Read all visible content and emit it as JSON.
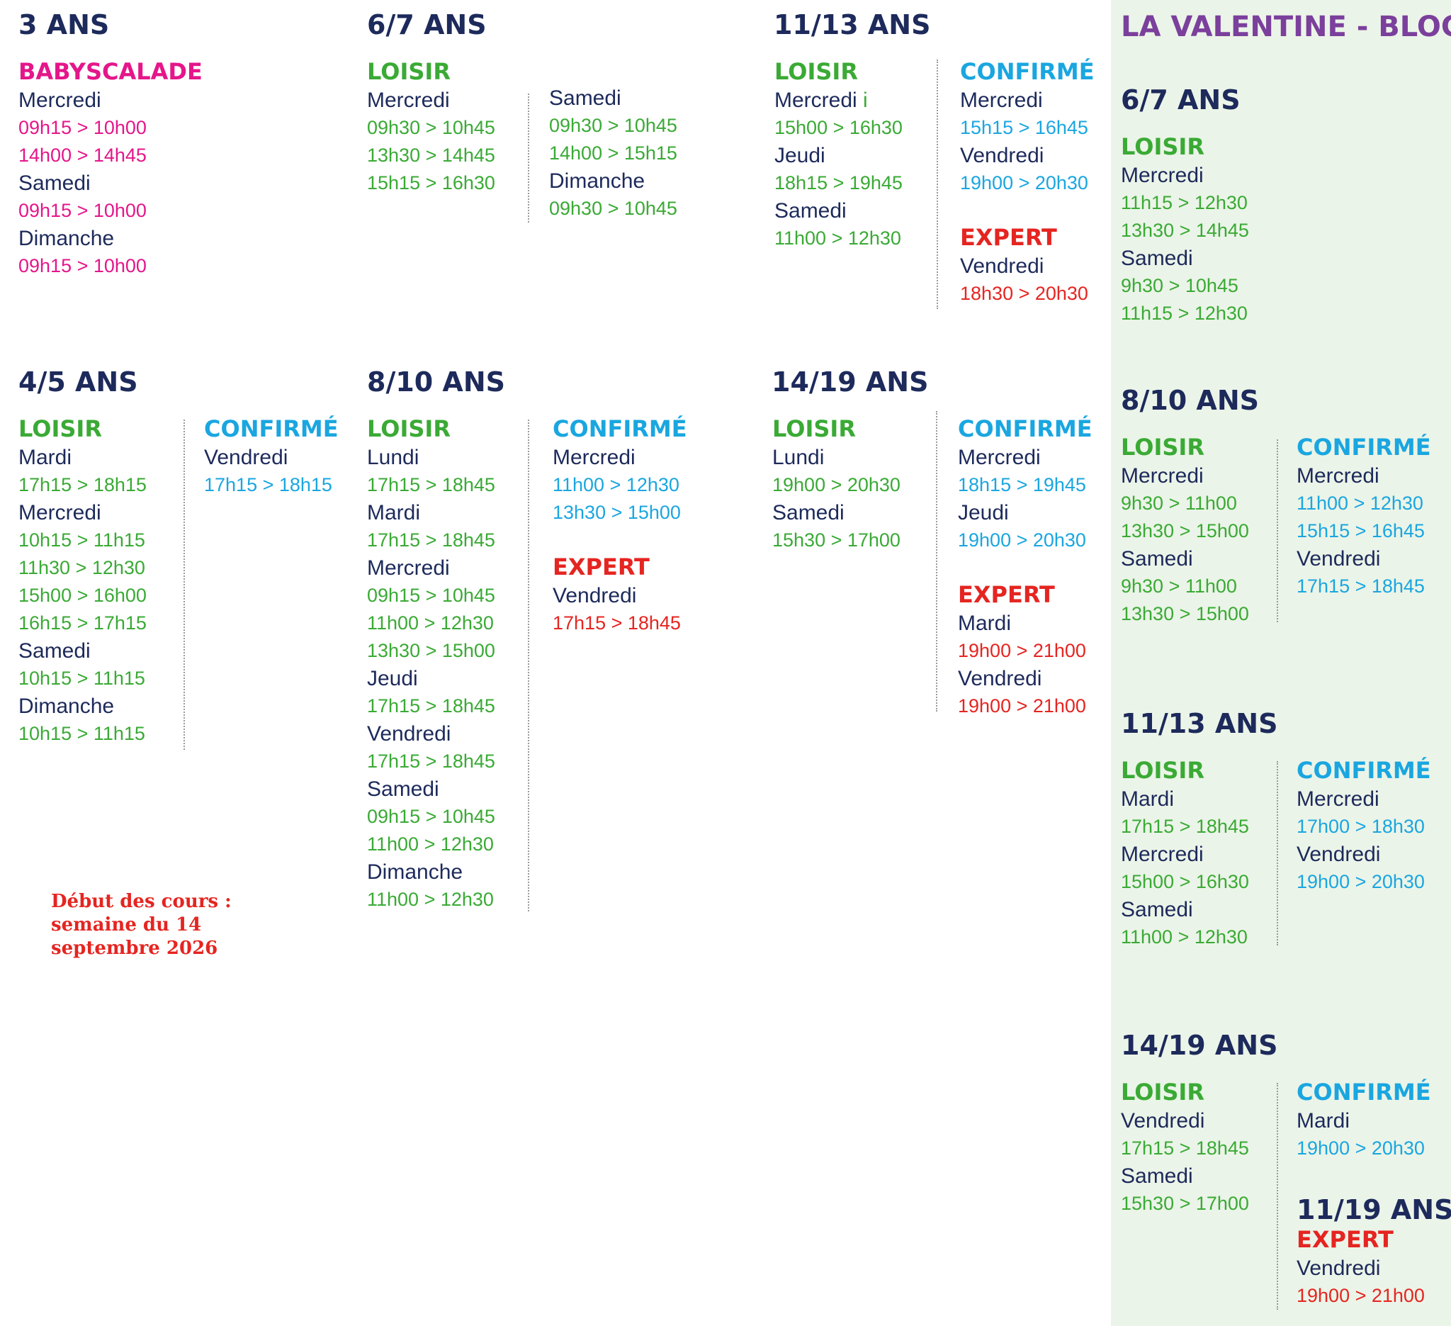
{
  "sections": {
    "a3": {
      "title": "3 ANS",
      "col1": [
        {
          "t": "cat",
          "c": "baby",
          "v": "BABYSCALADE"
        },
        {
          "t": "day",
          "v": "Mercredi"
        },
        {
          "t": "time",
          "c": "baby",
          "v": "09h15 > 10h00"
        },
        {
          "t": "time",
          "c": "baby",
          "v": "14h00 > 14h45"
        },
        {
          "t": "day",
          "v": "Samedi"
        },
        {
          "t": "time",
          "c": "baby",
          "v": "09h15 > 10h00"
        },
        {
          "t": "day",
          "v": "Dimanche"
        },
        {
          "t": "time",
          "c": "baby",
          "v": "09h15 > 10h00"
        }
      ]
    },
    "a67": {
      "title": "6/7 ANS",
      "col1": [
        {
          "t": "cat",
          "c": "loisir",
          "v": "LOISIR"
        },
        {
          "t": "day",
          "v": "Mercredi"
        },
        {
          "t": "time",
          "c": "loisir",
          "v": "09h30 > 10h45"
        },
        {
          "t": "time",
          "c": "loisir",
          "v": "13h30 > 14h45"
        },
        {
          "t": "time",
          "c": "loisir",
          "v": "15h15 > 16h30"
        }
      ],
      "col2": [
        {
          "t": "day",
          "v": "Samedi"
        },
        {
          "t": "time",
          "c": "loisir",
          "v": "09h30 > 10h45"
        },
        {
          "t": "time",
          "c": "loisir",
          "v": "14h00 > 15h15"
        },
        {
          "t": "day",
          "v": "Dimanche"
        },
        {
          "t": "time",
          "c": "loisir",
          "v": "09h30 > 10h45"
        }
      ]
    },
    "a1113": {
      "title": "11/13 ANS",
      "col1": [
        {
          "t": "cat",
          "c": "loisir",
          "v": "LOISIR"
        },
        {
          "t": "day",
          "v": "Mercredi",
          "extra": " i"
        },
        {
          "t": "time",
          "c": "loisir",
          "v": "15h00 > 16h30"
        },
        {
          "t": "day",
          "v": "Jeudi"
        },
        {
          "t": "time",
          "c": "loisir",
          "v": "18h15 > 19h45"
        },
        {
          "t": "day",
          "v": "Samedi"
        },
        {
          "t": "time",
          "c": "loisir",
          "v": "11h00 > 12h30"
        }
      ],
      "col2": [
        {
          "t": "cat",
          "c": "confirme",
          "v": "CONFIRMÉ"
        },
        {
          "t": "day",
          "v": "Mercredi"
        },
        {
          "t": "time",
          "c": "confirme",
          "v": "15h15 > 16h45"
        },
        {
          "t": "day",
          "v": "Vendredi"
        },
        {
          "t": "time",
          "c": "confirme",
          "v": "19h00 > 20h30"
        },
        {
          "t": "gap"
        },
        {
          "t": "cat",
          "c": "expert",
          "v": "EXPERT"
        },
        {
          "t": "day",
          "v": "Vendredi"
        },
        {
          "t": "time",
          "c": "expert",
          "v": "18h30 > 20h30"
        }
      ]
    },
    "a45": {
      "title": "4/5 ANS",
      "col1": [
        {
          "t": "cat",
          "c": "loisir",
          "v": "LOISIR"
        },
        {
          "t": "day",
          "v": "Mardi"
        },
        {
          "t": "time",
          "c": "loisir",
          "v": "17h15 > 18h15"
        },
        {
          "t": "day",
          "v": "Mercredi"
        },
        {
          "t": "time",
          "c": "loisir",
          "v": "10h15 > 11h15"
        },
        {
          "t": "time",
          "c": "loisir",
          "v": "11h30 > 12h30"
        },
        {
          "t": "time",
          "c": "loisir",
          "v": "15h00 > 16h00"
        },
        {
          "t": "time",
          "c": "loisir",
          "v": "16h15 > 17h15"
        },
        {
          "t": "day",
          "v": "Samedi"
        },
        {
          "t": "time",
          "c": "loisir",
          "v": "10h15 > 11h15"
        },
        {
          "t": "day",
          "v": "Dimanche"
        },
        {
          "t": "time",
          "c": "loisir",
          "v": "10h15 > 11h15"
        }
      ],
      "col2": [
        {
          "t": "cat",
          "c": "confirme",
          "v": "CONFIRMÉ"
        },
        {
          "t": "day",
          "v": "Vendredi"
        },
        {
          "t": "time",
          "c": "confirme",
          "v": "17h15 > 18h15"
        }
      ]
    },
    "a810": {
      "title": "8/10 ANS",
      "col1": [
        {
          "t": "cat",
          "c": "loisir",
          "v": "LOISIR"
        },
        {
          "t": "day",
          "v": "Lundi"
        },
        {
          "t": "time",
          "c": "loisir",
          "v": "17h15 > 18h45"
        },
        {
          "t": "day",
          "v": "Mardi"
        },
        {
          "t": "time",
          "c": "loisir",
          "v": "17h15 > 18h45"
        },
        {
          "t": "day",
          "v": "Mercredi"
        },
        {
          "t": "time",
          "c": "loisir",
          "v": "09h15 > 10h45"
        },
        {
          "t": "time",
          "c": "loisir",
          "v": "11h00 > 12h30"
        },
        {
          "t": "time",
          "c": "loisir",
          "v": "13h30 > 15h00"
        },
        {
          "t": "day",
          "v": "Jeudi"
        },
        {
          "t": "time",
          "c": "loisir",
          "v": "17h15 > 18h45"
        },
        {
          "t": "day",
          "v": "Vendredi"
        },
        {
          "t": "time",
          "c": "loisir",
          "v": "17h15 > 18h45"
        },
        {
          "t": "day",
          "v": "Samedi"
        },
        {
          "t": "time",
          "c": "loisir",
          "v": "09h15 > 10h45"
        },
        {
          "t": "time",
          "c": "loisir",
          "v": "11h00 > 12h30"
        },
        {
          "t": "day",
          "v": "Dimanche"
        },
        {
          "t": "time",
          "c": "loisir",
          "v": "11h00 > 12h30"
        }
      ],
      "col2": [
        {
          "t": "cat",
          "c": "confirme",
          "v": "CONFIRMÉ"
        },
        {
          "t": "day",
          "v": "Mercredi"
        },
        {
          "t": "time",
          "c": "confirme",
          "v": "11h00 > 12h30"
        },
        {
          "t": "time",
          "c": "confirme",
          "v": "13h30 > 15h00"
        },
        {
          "t": "gap"
        },
        {
          "t": "cat",
          "c": "expert",
          "v": "EXPERT"
        },
        {
          "t": "day",
          "v": "Vendredi"
        },
        {
          "t": "time",
          "c": "expert",
          "v": "17h15 > 18h45"
        }
      ]
    },
    "a1419": {
      "title": "14/19 ANS",
      "col1": [
        {
          "t": "cat",
          "c": "loisir",
          "v": "LOISIR"
        },
        {
          "t": "day",
          "v": "Lundi"
        },
        {
          "t": "time",
          "c": "loisir",
          "v": "19h00 > 20h30"
        },
        {
          "t": "day",
          "v": "Samedi"
        },
        {
          "t": "time",
          "c": "loisir",
          "v": "15h30 > 17h00"
        }
      ],
      "col2": [
        {
          "t": "cat",
          "c": "confirme",
          "v": "CONFIRMÉ"
        },
        {
          "t": "day",
          "v": "Mercredi"
        },
        {
          "t": "time",
          "c": "confirme",
          "v": "18h15 > 19h45"
        },
        {
          "t": "day",
          "v": "Jeudi"
        },
        {
          "t": "time",
          "c": "confirme",
          "v": "19h00 > 20h30"
        },
        {
          "t": "gap"
        },
        {
          "t": "cat",
          "c": "expert",
          "v": "EXPERT"
        },
        {
          "t": "day",
          "v": "Mardi"
        },
        {
          "t": "time",
          "c": "expert",
          "v": "19h00 > 21h00"
        },
        {
          "t": "day",
          "v": "Vendredi"
        },
        {
          "t": "time",
          "c": "expert",
          "v": "19h00 > 21h00"
        }
      ]
    },
    "v_title": "LA VALENTINE - BLOC",
    "v67": {
      "title": "6/7 ANS",
      "col1": [
        {
          "t": "cat",
          "c": "loisir",
          "v": "LOISIR"
        },
        {
          "t": "day",
          "v": "Mercredi"
        },
        {
          "t": "time",
          "c": "loisir",
          "v": "11h15 > 12h30"
        },
        {
          "t": "time",
          "c": "loisir",
          "v": "13h30 > 14h45"
        },
        {
          "t": "day",
          "v": "Samedi"
        },
        {
          "t": "time",
          "c": "loisir",
          "v": "9h30 > 10h45"
        },
        {
          "t": "time",
          "c": "loisir",
          "v": "11h15 > 12h30"
        }
      ]
    },
    "v810": {
      "title": "8/10 ANS",
      "col1": [
        {
          "t": "cat",
          "c": "loisir",
          "v": "LOISIR"
        },
        {
          "t": "day",
          "v": "Mercredi"
        },
        {
          "t": "time",
          "c": "loisir",
          "v": "9h30 > 11h00"
        },
        {
          "t": "time",
          "c": "loisir",
          "v": "13h30 > 15h00"
        },
        {
          "t": "day",
          "v": "Samedi"
        },
        {
          "t": "time",
          "c": "loisir",
          "v": "9h30 > 11h00"
        },
        {
          "t": "time",
          "c": "loisir",
          "v": "13h30 > 15h00"
        }
      ],
      "col2": [
        {
          "t": "cat",
          "c": "confirme",
          "v": "CONFIRMÉ"
        },
        {
          "t": "day",
          "v": "Mercredi"
        },
        {
          "t": "time",
          "c": "confirme",
          "v": "11h00 > 12h30"
        },
        {
          "t": "time",
          "c": "confirme",
          "v": "15h15 > 16h45"
        },
        {
          "t": "day",
          "v": "Vendredi"
        },
        {
          "t": "time",
          "c": "confirme",
          "v": "17h15 > 18h45"
        }
      ]
    },
    "v1113": {
      "title": "11/13 ANS",
      "col1": [
        {
          "t": "cat",
          "c": "loisir",
          "v": "LOISIR"
        },
        {
          "t": "day",
          "v": "Mardi"
        },
        {
          "t": "time",
          "c": "loisir",
          "v": "17h15 > 18h45"
        },
        {
          "t": "day",
          "v": "Mercredi"
        },
        {
          "t": "time",
          "c": "loisir",
          "v": "15h00 > 16h30"
        },
        {
          "t": "day",
          "v": "Samedi"
        },
        {
          "t": "time",
          "c": "loisir",
          "v": "11h00 > 12h30"
        }
      ],
      "col2": [
        {
          "t": "cat",
          "c": "confirme",
          "v": "CONFIRMÉ"
        },
        {
          "t": "day",
          "v": "Mercredi"
        },
        {
          "t": "time",
          "c": "confirme",
          "v": "17h00 > 18h30"
        },
        {
          "t": "day",
          "v": "Vendredi"
        },
        {
          "t": "time",
          "c": "confirme",
          "v": "19h00 > 20h30"
        }
      ]
    },
    "v1419": {
      "title": "14/19 ANS",
      "col1": [
        {
          "t": "cat",
          "c": "loisir",
          "v": "LOISIR"
        },
        {
          "t": "day",
          "v": "Vendredi"
        },
        {
          "t": "time",
          "c": "loisir",
          "v": "17h15 > 18h45"
        },
        {
          "t": "day",
          "v": "Samedi"
        },
        {
          "t": "time",
          "c": "loisir",
          "v": "15h30 > 17h00"
        }
      ],
      "col2": [
        {
          "t": "cat",
          "c": "confirme",
          "v": "CONFIRMÉ"
        },
        {
          "t": "day",
          "v": "Mardi"
        },
        {
          "t": "time",
          "c": "confirme",
          "v": "19h00 > 20h30"
        }
      ],
      "sub_title": "11/19 ANS",
      "col3": [
        {
          "t": "cat",
          "c": "expert",
          "v": "EXPERT"
        },
        {
          "t": "day",
          "v": "Vendredi"
        },
        {
          "t": "time",
          "c": "expert",
          "v": "19h00 > 21h00"
        }
      ]
    }
  },
  "note": [
    "Début des cours :",
    "semaine du 14",
    "septembre 2026"
  ],
  "colors": {
    "navy": "#1d2a5b",
    "loisir": "#3aaa35",
    "confirme": "#1aa6e0",
    "expert": "#e52521",
    "baby": "#e5168a",
    "panel_title": "#7b3f9c",
    "panel_bg": "#ebf4e8"
  }
}
